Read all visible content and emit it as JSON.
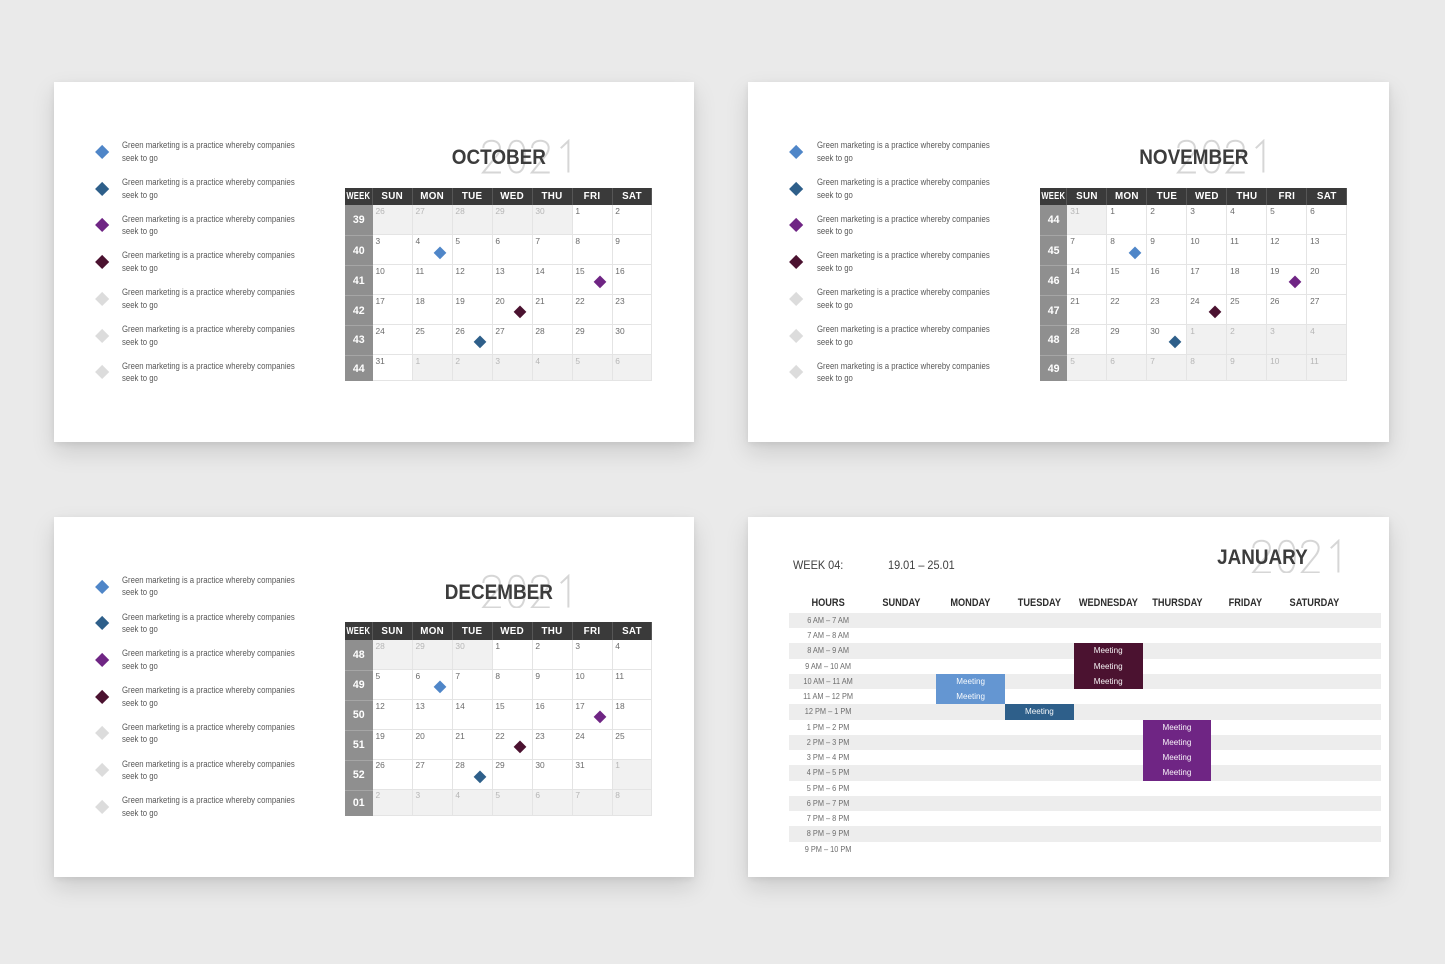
{
  "page": {
    "background": "#eaeaea",
    "card_background": "#ffffff"
  },
  "palette": {
    "blue": "#4f86c8",
    "blue_light": "#6496d2",
    "dark_blue": "#2e5f8a",
    "purple": "#6f2584",
    "maroon": "#4b1230",
    "gray": "#dcdcdc",
    "header_bg": "#3a3a3a",
    "week_bg": "#8f8f8f",
    "ghost": "#d6d6d6"
  },
  "year": "2021",
  "bullet_text": "Green marketing is a practice whereby companies seek to go",
  "bullet_colors": [
    "blue",
    "dark_blue",
    "purple",
    "maroon",
    "gray",
    "gray",
    "gray"
  ],
  "day_headers": [
    "WEEK",
    "SUN",
    "MON",
    "TUE",
    "WED",
    "THU",
    "FRI",
    "SAT"
  ],
  "months": [
    {
      "id": "october",
      "title": "OCTOBER",
      "weeks": [
        {
          "week": "39",
          "days": [
            {
              "n": "26",
              "out": true
            },
            {
              "n": "27",
              "out": true
            },
            {
              "n": "28",
              "out": true
            },
            {
              "n": "29",
              "out": true
            },
            {
              "n": "30",
              "out": true
            },
            {
              "n": "1",
              "out": false
            },
            {
              "n": "2",
              "out": false
            }
          ]
        },
        {
          "week": "40",
          "days": [
            {
              "n": "3",
              "out": false
            },
            {
              "n": "4",
              "out": false
            },
            {
              "n": "5",
              "out": false
            },
            {
              "n": "6",
              "out": false
            },
            {
              "n": "7",
              "out": false
            },
            {
              "n": "8",
              "out": false
            },
            {
              "n": "9",
              "out": false
            }
          ]
        },
        {
          "week": "41",
          "days": [
            {
              "n": "10",
              "out": false
            },
            {
              "n": "11",
              "out": false
            },
            {
              "n": "12",
              "out": false
            },
            {
              "n": "13",
              "out": false
            },
            {
              "n": "14",
              "out": false
            },
            {
              "n": "15",
              "out": false
            },
            {
              "n": "16",
              "out": false
            }
          ]
        },
        {
          "week": "42",
          "days": [
            {
              "n": "17",
              "out": false
            },
            {
              "n": "18",
              "out": false
            },
            {
              "n": "19",
              "out": false
            },
            {
              "n": "20",
              "out": false
            },
            {
              "n": "21",
              "out": false
            },
            {
              "n": "22",
              "out": false
            },
            {
              "n": "23",
              "out": false
            }
          ]
        },
        {
          "week": "43",
          "days": [
            {
              "n": "24",
              "out": false
            },
            {
              "n": "25",
              "out": false
            },
            {
              "n": "26",
              "out": false
            },
            {
              "n": "27",
              "out": false
            },
            {
              "n": "28",
              "out": false
            },
            {
              "n": "29",
              "out": false
            },
            {
              "n": "30",
              "out": false
            }
          ]
        },
        {
          "week": "44",
          "days": [
            {
              "n": "31",
              "out": false
            },
            {
              "n": "1",
              "out": true
            },
            {
              "n": "2",
              "out": true
            },
            {
              "n": "3",
              "out": true
            },
            {
              "n": "4",
              "out": true
            },
            {
              "n": "5",
              "out": true
            },
            {
              "n": "6",
              "out": true
            }
          ]
        }
      ],
      "markers": [
        {
          "row": 1,
          "col": 1,
          "color": "blue"
        },
        {
          "row": 2,
          "col": 5,
          "color": "purple"
        },
        {
          "row": 3,
          "col": 3,
          "color": "maroon"
        },
        {
          "row": 4,
          "col": 2,
          "color": "dark_blue"
        }
      ]
    },
    {
      "id": "november",
      "title": "NOVEMBER",
      "weeks": [
        {
          "week": "44",
          "days": [
            {
              "n": "31",
              "out": true
            },
            {
              "n": "1",
              "out": false
            },
            {
              "n": "2",
              "out": false
            },
            {
              "n": "3",
              "out": false
            },
            {
              "n": "4",
              "out": false
            },
            {
              "n": "5",
              "out": false
            },
            {
              "n": "6",
              "out": false
            }
          ]
        },
        {
          "week": "45",
          "days": [
            {
              "n": "7",
              "out": false
            },
            {
              "n": "8",
              "out": false
            },
            {
              "n": "9",
              "out": false
            },
            {
              "n": "10",
              "out": false
            },
            {
              "n": "11",
              "out": false
            },
            {
              "n": "12",
              "out": false
            },
            {
              "n": "13",
              "out": false
            }
          ]
        },
        {
          "week": "46",
          "days": [
            {
              "n": "14",
              "out": false
            },
            {
              "n": "15",
              "out": false
            },
            {
              "n": "16",
              "out": false
            },
            {
              "n": "17",
              "out": false
            },
            {
              "n": "18",
              "out": false
            },
            {
              "n": "19",
              "out": false
            },
            {
              "n": "20",
              "out": false
            }
          ]
        },
        {
          "week": "47",
          "days": [
            {
              "n": "21",
              "out": false
            },
            {
              "n": "22",
              "out": false
            },
            {
              "n": "23",
              "out": false
            },
            {
              "n": "24",
              "out": false
            },
            {
              "n": "25",
              "out": false
            },
            {
              "n": "26",
              "out": false
            },
            {
              "n": "27",
              "out": false
            }
          ]
        },
        {
          "week": "48",
          "days": [
            {
              "n": "28",
              "out": false
            },
            {
              "n": "29",
              "out": false
            },
            {
              "n": "30",
              "out": false
            },
            {
              "n": "1",
              "out": true
            },
            {
              "n": "2",
              "out": true
            },
            {
              "n": "3",
              "out": true
            },
            {
              "n": "4",
              "out": true
            }
          ]
        },
        {
          "week": "49",
          "days": [
            {
              "n": "5",
              "out": true
            },
            {
              "n": "6",
              "out": true
            },
            {
              "n": "7",
              "out": true
            },
            {
              "n": "8",
              "out": true
            },
            {
              "n": "9",
              "out": true
            },
            {
              "n": "10",
              "out": true
            },
            {
              "n": "11",
              "out": true
            }
          ]
        }
      ],
      "markers": [
        {
          "row": 1,
          "col": 1,
          "color": "blue"
        },
        {
          "row": 2,
          "col": 5,
          "color": "purple"
        },
        {
          "row": 3,
          "col": 3,
          "color": "maroon"
        },
        {
          "row": 4,
          "col": 2,
          "color": "dark_blue"
        }
      ]
    },
    {
      "id": "december",
      "title": "DECEMBER",
      "weeks": [
        {
          "week": "48",
          "days": [
            {
              "n": "28",
              "out": true
            },
            {
              "n": "29",
              "out": true
            },
            {
              "n": "30",
              "out": true
            },
            {
              "n": "1",
              "out": false
            },
            {
              "n": "2",
              "out": false
            },
            {
              "n": "3",
              "out": false
            },
            {
              "n": "4",
              "out": false
            }
          ]
        },
        {
          "week": "49",
          "days": [
            {
              "n": "5",
              "out": false
            },
            {
              "n": "6",
              "out": false
            },
            {
              "n": "7",
              "out": false
            },
            {
              "n": "8",
              "out": false
            },
            {
              "n": "9",
              "out": false
            },
            {
              "n": "10",
              "out": false
            },
            {
              "n": "11",
              "out": false
            }
          ]
        },
        {
          "week": "50",
          "days": [
            {
              "n": "12",
              "out": false
            },
            {
              "n": "13",
              "out": false
            },
            {
              "n": "14",
              "out": false
            },
            {
              "n": "15",
              "out": false
            },
            {
              "n": "16",
              "out": false
            },
            {
              "n": "17",
              "out": false
            },
            {
              "n": "18",
              "out": false
            }
          ]
        },
        {
          "week": "51",
          "days": [
            {
              "n": "19",
              "out": false
            },
            {
              "n": "20",
              "out": false
            },
            {
              "n": "21",
              "out": false
            },
            {
              "n": "22",
              "out": false
            },
            {
              "n": "23",
              "out": false
            },
            {
              "n": "24",
              "out": false
            },
            {
              "n": "25",
              "out": false
            }
          ]
        },
        {
          "week": "52",
          "days": [
            {
              "n": "26",
              "out": false
            },
            {
              "n": "27",
              "out": false
            },
            {
              "n": "28",
              "out": false
            },
            {
              "n": "29",
              "out": false
            },
            {
              "n": "30",
              "out": false
            },
            {
              "n": "31",
              "out": false
            },
            {
              "n": "1",
              "out": true
            }
          ]
        },
        {
          "week": "01",
          "days": [
            {
              "n": "2",
              "out": true
            },
            {
              "n": "3",
              "out": true
            },
            {
              "n": "4",
              "out": true
            },
            {
              "n": "5",
              "out": true
            },
            {
              "n": "6",
              "out": true
            },
            {
              "n": "7",
              "out": true
            },
            {
              "n": "8",
              "out": true
            }
          ]
        }
      ],
      "markers": [
        {
          "row": 1,
          "col": 1,
          "color": "blue"
        },
        {
          "row": 2,
          "col": 5,
          "color": "purple"
        },
        {
          "row": 3,
          "col": 3,
          "color": "maroon"
        },
        {
          "row": 4,
          "col": 2,
          "color": "dark_blue"
        }
      ]
    }
  ],
  "january": {
    "title": "JANUARY",
    "week_label": "WEEK 04:",
    "range": "19.01 – 25.01",
    "columns": [
      "HOURS",
      "SUNDAY",
      "MONDAY",
      "TUESDAY",
      "WEDNESDAY",
      "THURSDAY",
      "FRIDAY",
      "SATURDAY"
    ],
    "hours": [
      "6 AM – 7 AM",
      "7 AM – 8 AM",
      "8 AM – 9 AM",
      "9 AM – 10 AM",
      "10 AM – 11 AM",
      "11 AM – 12 PM",
      "12 PM – 1 PM",
      "1 PM – 2 PM",
      "2 PM – 3 PM",
      "3 PM – 4 PM",
      "4 PM – 5 PM",
      "5 PM – 6 PM",
      "6 PM – 7 PM",
      "7 PM – 8 PM",
      "8 PM – 9 PM",
      "9 PM – 10 PM"
    ],
    "events": [
      {
        "day": "MONDAY",
        "col": 1,
        "row": 4,
        "span": 2,
        "color": "blue_light",
        "label": "Meeting"
      },
      {
        "day": "TUESDAY",
        "col": 2,
        "row": 6,
        "span": 1,
        "color": "dark_blue",
        "label": "Meeting"
      },
      {
        "day": "WEDNESDAY",
        "col": 3,
        "row": 2,
        "span": 3,
        "color": "maroon",
        "label": "Meeting"
      },
      {
        "day": "THURSDAY",
        "col": 4,
        "row": 7,
        "span": 4,
        "color": "purple",
        "label": "Meeting"
      }
    ]
  }
}
